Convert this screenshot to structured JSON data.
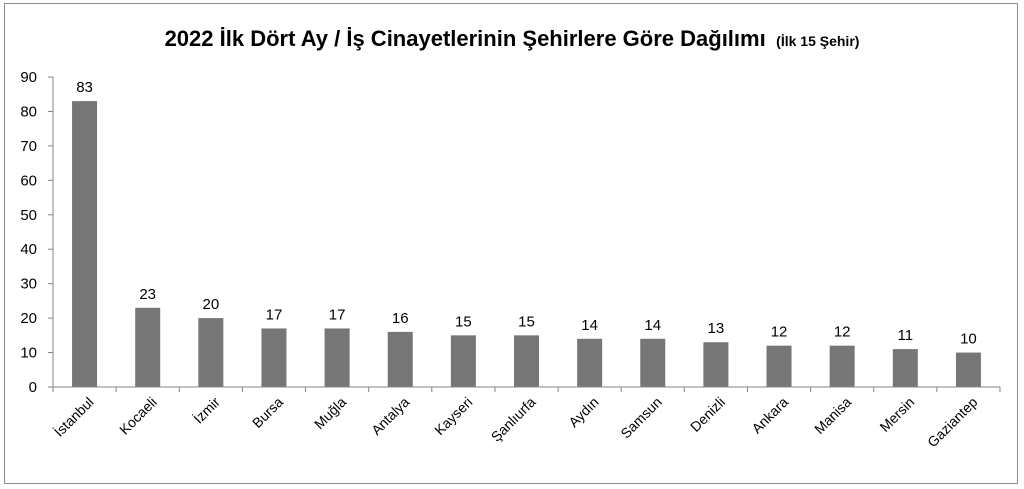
{
  "chart_data": {
    "type": "bar",
    "title": "2022 İlk Dört Ay / İş Cinayetlerinin Şehirlere Göre Dağılımı",
    "subtitle": "(İlk 15 Şehir)",
    "xlabel": "",
    "ylabel": "",
    "ylim": [
      0,
      90
    ],
    "yticks": [
      "0",
      "10",
      "20",
      "30",
      "40",
      "50",
      "60",
      "70",
      "80",
      "90"
    ],
    "grid": false,
    "legend": "none",
    "bar_color": "#767676",
    "categories": [
      "İstanbul",
      "Kocaeli",
      "İzmir",
      "Bursa",
      "Muğla",
      "Antalya",
      "Kayseri",
      "Şanlıurfa",
      "Aydın",
      "Samsun",
      "Denizli",
      "Ankara",
      "Manisa",
      "Mersin",
      "Gaziantep"
    ],
    "values": [
      83,
      23,
      20,
      17,
      17,
      16,
      15,
      15,
      14,
      14,
      13,
      12,
      12,
      11,
      10
    ]
  }
}
